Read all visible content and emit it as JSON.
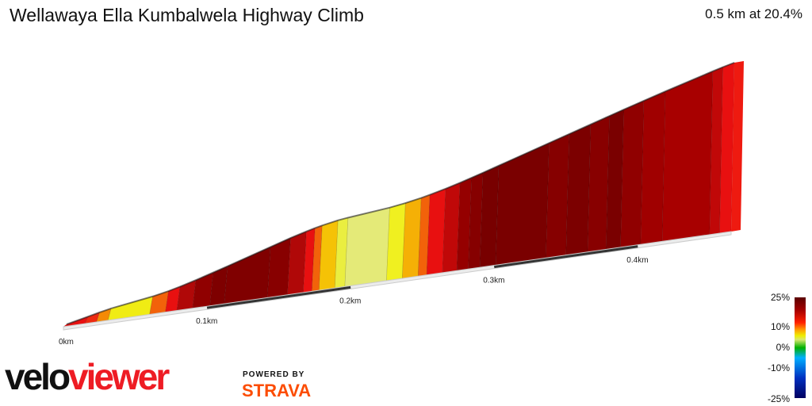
{
  "header": {
    "title": "Wellawaya Ella Kumbalwela Highway Climb",
    "summary": "0.5 km at 20.4%"
  },
  "scale": {
    "labels": [
      "25%",
      "10%",
      "0%",
      "-10%",
      "-25%"
    ]
  },
  "branding": {
    "logo_part1": "velo",
    "logo_part2": "viewer",
    "powered_by": "POWERED BY",
    "strava": "STRAVA"
  },
  "chart_data": {
    "type": "area",
    "x_unit": "km",
    "x_ticks": [
      "0km",
      "0.1km",
      "0.2km",
      "0.3km",
      "0.4km"
    ],
    "xlim": [
      0,
      0.5
    ],
    "segments": [
      {
        "d0": 0.0,
        "d1": 0.015,
        "grade": 18,
        "color": "#e81010"
      },
      {
        "d0": 0.015,
        "d1": 0.023,
        "grade": 18,
        "color": "#ee2a10"
      },
      {
        "d0": 0.023,
        "d1": 0.031,
        "grade": 16,
        "color": "#f58a05"
      },
      {
        "d0": 0.031,
        "d1": 0.06,
        "grade": 12,
        "color": "#f0ec14"
      },
      {
        "d0": 0.06,
        "d1": 0.071,
        "grade": 16,
        "color": "#f2620a"
      },
      {
        "d0": 0.071,
        "d1": 0.079,
        "grade": 20,
        "color": "#e81010"
      },
      {
        "d0": 0.079,
        "d1": 0.09,
        "grade": 22,
        "color": "#b00808"
      },
      {
        "d0": 0.09,
        "d1": 0.102,
        "grade": 24,
        "color": "#900000"
      },
      {
        "d0": 0.102,
        "d1": 0.112,
        "grade": 24,
        "color": "#7e0000"
      },
      {
        "d0": 0.112,
        "d1": 0.142,
        "grade": 25,
        "color": "#800000"
      },
      {
        "d0": 0.142,
        "d1": 0.156,
        "grade": 25,
        "color": "#880000"
      },
      {
        "d0": 0.156,
        "d1": 0.167,
        "grade": 22,
        "color": "#b00808"
      },
      {
        "d0": 0.167,
        "d1": 0.173,
        "grade": 20,
        "color": "#e81010"
      },
      {
        "d0": 0.173,
        "d1": 0.178,
        "grade": 18,
        "color": "#f2620a"
      },
      {
        "d0": 0.178,
        "d1": 0.189,
        "grade": 15,
        "color": "#f5c206"
      },
      {
        "d0": 0.189,
        "d1": 0.196,
        "grade": 10,
        "color": "#eaee40"
      },
      {
        "d0": 0.196,
        "d1": 0.225,
        "grade": 8,
        "color": "#e4ea78"
      },
      {
        "d0": 0.225,
        "d1": 0.236,
        "grade": 12,
        "color": "#f0f020"
      },
      {
        "d0": 0.236,
        "d1": 0.247,
        "grade": 15,
        "color": "#f5b006"
      },
      {
        "d0": 0.247,
        "d1": 0.253,
        "grade": 18,
        "color": "#f2620a"
      },
      {
        "d0": 0.253,
        "d1": 0.264,
        "grade": 20,
        "color": "#e81010"
      },
      {
        "d0": 0.264,
        "d1": 0.274,
        "grade": 22,
        "color": "#c00808"
      },
      {
        "d0": 0.274,
        "d1": 0.282,
        "grade": 24,
        "color": "#950000"
      },
      {
        "d0": 0.282,
        "d1": 0.29,
        "grade": 24,
        "color": "#860000"
      },
      {
        "d0": 0.29,
        "d1": 0.301,
        "grade": 25,
        "color": "#780000"
      },
      {
        "d0": 0.301,
        "d1": 0.336,
        "grade": 25,
        "color": "#7a0000"
      },
      {
        "d0": 0.336,
        "d1": 0.35,
        "grade": 25,
        "color": "#860000"
      },
      {
        "d0": 0.35,
        "d1": 0.365,
        "grade": 25,
        "color": "#7c0000"
      },
      {
        "d0": 0.365,
        "d1": 0.378,
        "grade": 25,
        "color": "#880000"
      },
      {
        "d0": 0.378,
        "d1": 0.388,
        "grade": 25,
        "color": "#7a0000"
      },
      {
        "d0": 0.388,
        "d1": 0.402,
        "grade": 24,
        "color": "#900000"
      },
      {
        "d0": 0.402,
        "d1": 0.417,
        "grade": 24,
        "color": "#a00000"
      },
      {
        "d0": 0.417,
        "d1": 0.45,
        "grade": 23,
        "color": "#a80000"
      },
      {
        "d0": 0.45,
        "d1": 0.457,
        "grade": 22,
        "color": "#c00808"
      },
      {
        "d0": 0.457,
        "d1": 0.465,
        "grade": 20,
        "color": "#e81010"
      }
    ]
  }
}
